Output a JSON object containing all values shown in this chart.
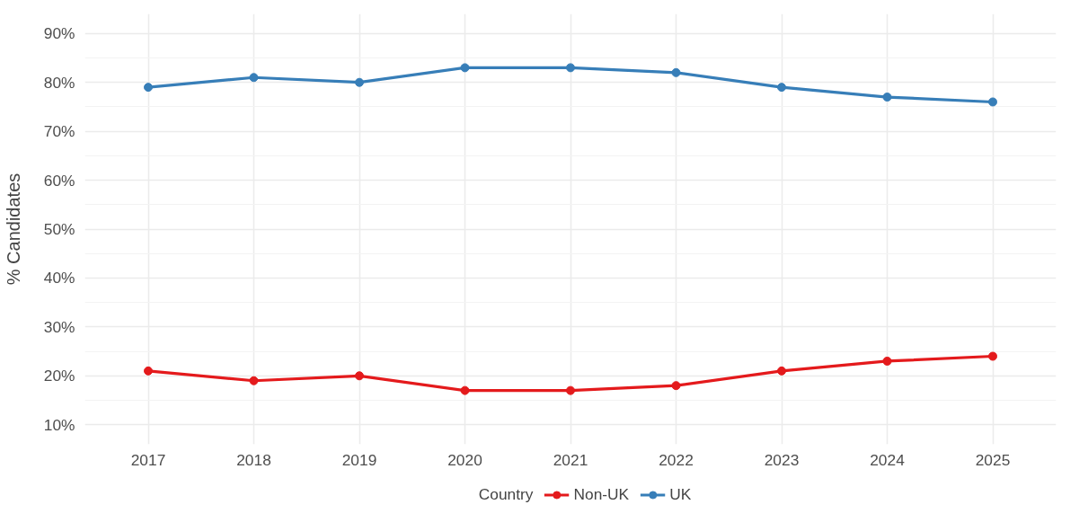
{
  "chart_data": {
    "type": "line",
    "x": [
      2017,
      2018,
      2019,
      2020,
      2021,
      2022,
      2023,
      2024,
      2025
    ],
    "series": [
      {
        "name": "Non-UK",
        "color": "#e41a1c",
        "values": [
          21,
          19,
          20,
          17,
          17,
          18,
          21,
          23,
          24
        ]
      },
      {
        "name": "UK",
        "color": "#377eb8",
        "values": [
          79,
          81,
          80,
          83,
          83,
          82,
          79,
          77,
          76
        ]
      }
    ],
    "ylabel": "% Candidates",
    "legend_title": "Country",
    "legend": "bottom",
    "xlim": [
      2016.4,
      2025.6
    ],
    "xticks": [
      2017,
      2018,
      2019,
      2020,
      2021,
      2022,
      2023,
      2024,
      2025
    ],
    "ylim": [
      6,
      94
    ],
    "yticks": [
      {
        "value": 10,
        "label": "10%"
      },
      {
        "value": 20,
        "label": "20%"
      },
      {
        "value": 30,
        "label": "30%"
      },
      {
        "value": 40,
        "label": "40%"
      },
      {
        "value": 50,
        "label": "50%"
      },
      {
        "value": 60,
        "label": "60%"
      },
      {
        "value": 70,
        "label": "70%"
      },
      {
        "value": 80,
        "label": "80%"
      },
      {
        "value": 90,
        "label": "90%"
      }
    ],
    "grid": true,
    "marker": "circle",
    "line_style": "solid"
  }
}
